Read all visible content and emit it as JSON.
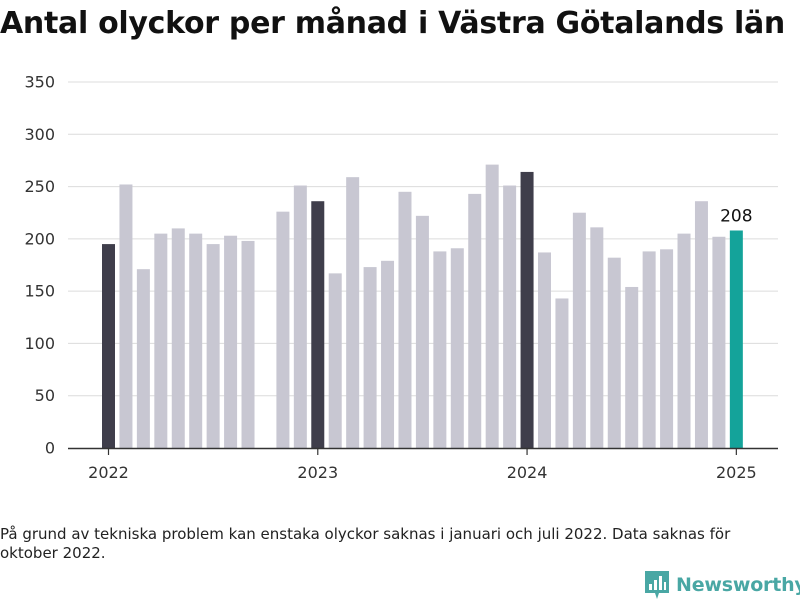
{
  "title": "Antal olyckor per månad i Västra Götalands län",
  "footnote": "På grund av tekniska problem kan enstaka olyckor saknas i januari och juli 2022. Data saknas för oktober 2022.",
  "brand": {
    "name": "Newsworthy"
  },
  "colors": {
    "bar": "#c8c7d2",
    "january": "#3f3e4b",
    "latest": "#14a39a",
    "grid": "#dcdcdc",
    "axis": "#333333",
    "brand": "#49a7a4"
  },
  "chart_data": {
    "type": "bar",
    "title": "Antal olyckor per månad i Västra Götalands län",
    "xlabel": "",
    "ylabel": "",
    "ylim": [
      0,
      350
    ],
    "yticks": [
      0,
      50,
      100,
      150,
      200,
      250,
      300,
      350
    ],
    "xticks": [
      "2022",
      "2023",
      "2024",
      "2025"
    ],
    "grid": true,
    "highlight_label": "208",
    "series": [
      {
        "values": [
          {
            "month": "2022-01",
            "value": 195
          },
          {
            "month": "2022-02",
            "value": 252
          },
          {
            "month": "2022-03",
            "value": 171
          },
          {
            "month": "2022-04",
            "value": 205
          },
          {
            "month": "2022-05",
            "value": 210
          },
          {
            "month": "2022-06",
            "value": 205
          },
          {
            "month": "2022-07",
            "value": 195
          },
          {
            "month": "2022-08",
            "value": 203
          },
          {
            "month": "2022-09",
            "value": 198
          },
          {
            "month": "2022-10",
            "value": null
          },
          {
            "month": "2022-11",
            "value": 226
          },
          {
            "month": "2022-12",
            "value": 251
          },
          {
            "month": "2023-01",
            "value": 236
          },
          {
            "month": "2023-02",
            "value": 167
          },
          {
            "month": "2023-03",
            "value": 259
          },
          {
            "month": "2023-04",
            "value": 173
          },
          {
            "month": "2023-05",
            "value": 179
          },
          {
            "month": "2023-06",
            "value": 245
          },
          {
            "month": "2023-07",
            "value": 222
          },
          {
            "month": "2023-08",
            "value": 188
          },
          {
            "month": "2023-09",
            "value": 191
          },
          {
            "month": "2023-10",
            "value": 243
          },
          {
            "month": "2023-11",
            "value": 271
          },
          {
            "month": "2023-12",
            "value": 251
          },
          {
            "month": "2024-01",
            "value": 264
          },
          {
            "month": "2024-02",
            "value": 187
          },
          {
            "month": "2024-03",
            "value": 143
          },
          {
            "month": "2024-04",
            "value": 225
          },
          {
            "month": "2024-05",
            "value": 211
          },
          {
            "month": "2024-06",
            "value": 182
          },
          {
            "month": "2024-07",
            "value": 154
          },
          {
            "month": "2024-08",
            "value": 188
          },
          {
            "month": "2024-09",
            "value": 190
          },
          {
            "month": "2024-10",
            "value": 205
          },
          {
            "month": "2024-11",
            "value": 236
          },
          {
            "month": "2024-12",
            "value": 202
          },
          {
            "month": "2025-01",
            "value": 208
          }
        ]
      }
    ]
  }
}
